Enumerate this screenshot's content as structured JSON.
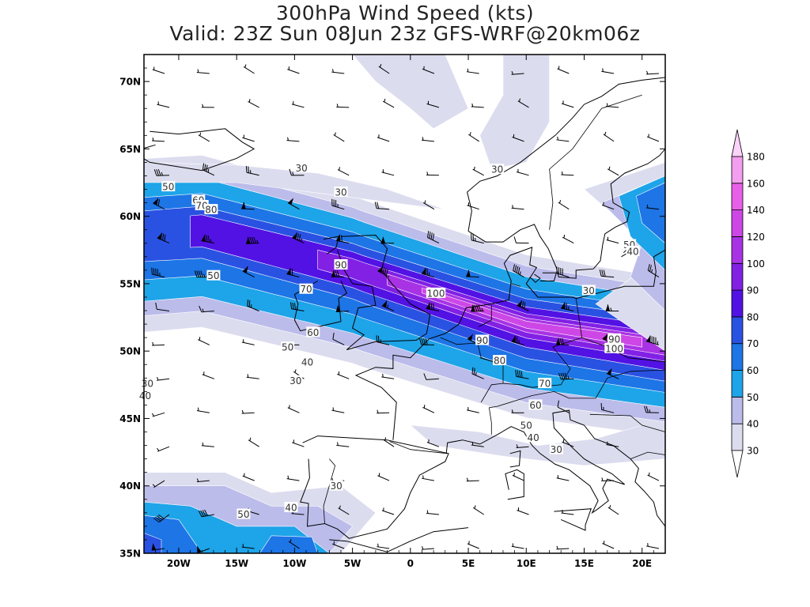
{
  "title": {
    "line1": "300hPa Wind Speed (kts)",
    "line2": "Valid: 23Z Sun 08Jun 23z GFS-WRF@20km06z"
  },
  "axes": {
    "lon_min": -23,
    "lon_max": 22,
    "lat_min": 35,
    "lat_max": 72,
    "lon_ticks": [
      {
        "value": -20,
        "label": "20W"
      },
      {
        "value": -15,
        "label": "15W"
      },
      {
        "value": -10,
        "label": "10W"
      },
      {
        "value": -5,
        "label": "5W"
      },
      {
        "value": 0,
        "label": "0"
      },
      {
        "value": 5,
        "label": "5E"
      },
      {
        "value": 10,
        "label": "10E"
      },
      {
        "value": 15,
        "label": "15E"
      },
      {
        "value": 20,
        "label": "20E"
      }
    ],
    "lat_ticks": [
      {
        "value": 35,
        "label": "35N"
      },
      {
        "value": 40,
        "label": "40N"
      },
      {
        "value": 45,
        "label": "45N"
      },
      {
        "value": 50,
        "label": "50N"
      },
      {
        "value": 55,
        "label": "55N"
      },
      {
        "value": 60,
        "label": "60N"
      },
      {
        "value": 65,
        "label": "65N"
      },
      {
        "value": 70,
        "label": "70N"
      }
    ]
  },
  "colorbar": {
    "levels": [
      "30",
      "40",
      "50",
      "60",
      "70",
      "80",
      "90",
      "100",
      "120",
      "140",
      "160",
      "180"
    ],
    "colors": [
      "#dcdcef",
      "#bcbceb",
      "#1ea4e8",
      "#1d75e6",
      "#2a52e2",
      "#5212e4",
      "#8220e4",
      "#a833e4",
      "#cd47e6",
      "#e860e8",
      "#f49ef0",
      "#fbd2f8"
    ]
  },
  "contour_labels": [
    {
      "lon": -20.9,
      "lat": 62.2,
      "text": "50"
    },
    {
      "lon": -18.3,
      "lat": 61.2,
      "text": "60"
    },
    {
      "lon": -18.0,
      "lat": 60.8,
      "text": "70"
    },
    {
      "lon": -17.2,
      "lat": 60.5,
      "text": "80"
    },
    {
      "lon": -9.4,
      "lat": 63.6,
      "text": "30"
    },
    {
      "lon": -6.0,
      "lat": 61.8,
      "text": "30"
    },
    {
      "lon": 7.5,
      "lat": 63.5,
      "text": "30"
    },
    {
      "lon": -17.0,
      "lat": 55.6,
      "text": "50"
    },
    {
      "lon": -6.0,
      "lat": 56.4,
      "text": "90"
    },
    {
      "lon": -9.0,
      "lat": 54.6,
      "text": "70"
    },
    {
      "lon": -8.4,
      "lat": 51.4,
      "text": "60"
    },
    {
      "lon": -10.6,
      "lat": 50.3,
      "text": "50"
    },
    {
      "lon": -8.9,
      "lat": 49.2,
      "text": "40"
    },
    {
      "lon": -9.9,
      "lat": 47.8,
      "text": "30"
    },
    {
      "lon": 2.2,
      "lat": 54.3,
      "text": "100"
    },
    {
      "lon": 6.2,
      "lat": 50.8,
      "text": "90"
    },
    {
      "lon": 7.7,
      "lat": 49.3,
      "text": "80"
    },
    {
      "lon": 11.6,
      "lat": 47.6,
      "text": "70"
    },
    {
      "lon": 10.8,
      "lat": 46.0,
      "text": "60"
    },
    {
      "lon": 10.0,
      "lat": 44.5,
      "text": "50"
    },
    {
      "lon": 10.6,
      "lat": 43.6,
      "text": "40"
    },
    {
      "lon": 12.6,
      "lat": 42.7,
      "text": "30"
    },
    {
      "lon": 15.4,
      "lat": 54.5,
      "text": "30"
    },
    {
      "lon": 18.9,
      "lat": 57.9,
      "text": "50"
    },
    {
      "lon": 19.2,
      "lat": 57.4,
      "text": "40"
    },
    {
      "lon": 17.6,
      "lat": 50.9,
      "text": "90"
    },
    {
      "lon": 17.6,
      "lat": 50.2,
      "text": "100"
    },
    {
      "lon": -22.7,
      "lat": 47.6,
      "text": "30"
    },
    {
      "lon": -22.9,
      "lat": 46.7,
      "text": "40"
    },
    {
      "lon": -6.4,
      "lat": 40.0,
      "text": "30"
    },
    {
      "lon": -10.3,
      "lat": 38.4,
      "text": "40"
    },
    {
      "lon": -14.4,
      "lat": 37.9,
      "text": "50"
    }
  ]
}
